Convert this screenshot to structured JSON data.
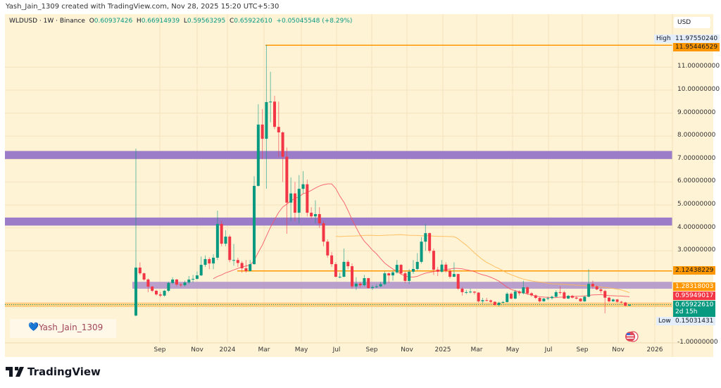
{
  "header": {
    "credit": "Yash_Jain_1309 created with TradingView.com, Nov 28, 2025 15:20 UTC+5:30"
  },
  "legend": {
    "symbol": "WLDUSD · 1W · Binance",
    "o_label": "O",
    "o": "0.60937426",
    "h_label": "H",
    "h": "0.66914939",
    "l_label": "L",
    "l": "0.59563295",
    "c_label": "C",
    "c": "0.65922610",
    "change": "+0.05045548 (+8.29%)"
  },
  "price_axis": {
    "currency": "USD",
    "ticks": [
      "11.00000000",
      "10.00000000",
      "9.00000000",
      "8.00000000",
      "7.00000000",
      "6.00000000",
      "5.00000000",
      "4.00000000",
      "3.00000000",
      "-1.00000000"
    ],
    "tick_values": [
      11,
      10,
      9,
      8,
      7,
      6,
      5,
      4,
      3,
      -1
    ]
  },
  "price_labels": {
    "high_tag": "High",
    "high": "11.97550240",
    "hline_top": "11.95446529",
    "hline_mid": "2.12438229",
    "ma_orange": "1.28318003",
    "ma_red": "0.95949017",
    "last": "0.65922610",
    "countdown": "2d 15h",
    "low_tag": "Low",
    "low": "0.15031431"
  },
  "time_axis": [
    "Sep",
    "Nov",
    "2024",
    "Mar",
    "May",
    "Jul",
    "Sep",
    "Nov",
    "2025",
    "Mar",
    "May",
    "Jul",
    "Sep",
    "Nov",
    "2026"
  ],
  "watermark": {
    "emoji": "💙",
    "name": "Yash_Jain_1309"
  },
  "footer": {
    "brand": "TradingView"
  },
  "colors": {
    "up": "#089981",
    "down": "#f23645",
    "zone": "#9b7cc8",
    "hline": "#ff9800",
    "ma_red": "#f7525f",
    "ma_orange": "#ffb74d",
    "background": "#fff3d6"
  },
  "chart_data": {
    "type": "candlestick",
    "symbol": "WLDUSD",
    "interval": "1W",
    "exchange": "Binance",
    "ylim": [
      -1,
      12.5
    ],
    "horizontal_lines": [
      11.95446529,
      2.12438229
    ],
    "zones": [
      [
        7.0,
        7.35
      ],
      [
        4.1,
        4.45
      ],
      [
        1.35,
        1.65
      ],
      [
        0.55,
        0.75
      ]
    ],
    "open": [
      0.18,
      2.27,
      2.02,
      1.75,
      1.44,
      1.26,
      1.1,
      1.05,
      1.26,
      1.6,
      1.75,
      1.53,
      1.5,
      1.62,
      1.75,
      1.78,
      1.93,
      2.39,
      2.64,
      2.45,
      2.7,
      4.17,
      3.31,
      3.62,
      2.6,
      2.6,
      2.47,
      2.24,
      2.12,
      2.42,
      5.83,
      8.5,
      7.88,
      9.48,
      9.5,
      8.4,
      8.16,
      7.1,
      5.1,
      5.5,
      4.66,
      5.7,
      5.9,
      4.66,
      4.5,
      4.6,
      4.2,
      3.4,
      2.8,
      2.42,
      1.87,
      1.87,
      2.52,
      2.33,
      1.45,
      1.57,
      1.5,
      1.81,
      1.38,
      1.42,
      1.45,
      1.55,
      2.02,
      1.93,
      2.06,
      2.39,
      2.02,
      1.69,
      2.09,
      2.21,
      2.52,
      3.4,
      3.77,
      3.0,
      2.18,
      2.09,
      2.4,
      2.12,
      1.87,
      1.99,
      1.35,
      1.2,
      1.2,
      1.22,
      1.18,
      0.8,
      0.85,
      0.84,
      0.78,
      0.64,
      0.74,
      0.77,
      1.13,
      0.92,
      1.23,
      1.15,
      1.41,
      1.15,
      1.06,
      0.95,
      0.8,
      0.92,
      0.94,
      1.0,
      1.2,
      1.19,
      0.92,
      1.04,
      0.96,
      0.92,
      0.8,
      1.0,
      1.56,
      1.45,
      1.32,
      1.25,
      0.96,
      0.8,
      0.88,
      0.78,
      0.75,
      0.60937426
    ],
    "high": [
      7.45,
      2.5,
      2.05,
      1.8,
      1.48,
      1.3,
      1.2,
      1.3,
      1.65,
      1.85,
      1.78,
      1.6,
      1.7,
      1.9,
      1.95,
      2.1,
      2.75,
      2.8,
      2.72,
      2.85,
      4.75,
      4.3,
      3.9,
      3.7,
      3.3,
      2.7,
      2.55,
      2.6,
      2.6,
      6.25,
      9.39,
      9.17,
      11.9755024,
      10.8,
      9.75,
      9.5,
      8.2,
      7.5,
      6.2,
      6.0,
      6.3,
      6.47,
      6.1,
      4.9,
      5.2,
      4.9,
      4.3,
      3.5,
      2.95,
      2.5,
      2.05,
      3.1,
      2.6,
      2.45,
      1.85,
      1.65,
      1.95,
      1.82,
      1.5,
      1.55,
      1.65,
      2.1,
      2.05,
      2.15,
      2.6,
      2.42,
      2.1,
      2.2,
      2.6,
      2.9,
      3.6,
      4.17,
      3.8,
      3.1,
      2.3,
      2.6,
      2.5,
      2.2,
      2.5,
      2.0,
      1.42,
      1.3,
      1.35,
      1.25,
      1.2,
      0.95,
      0.95,
      0.88,
      0.8,
      0.78,
      0.82,
      1.2,
      1.2,
      1.3,
      1.28,
      1.7,
      1.45,
      1.2,
      1.1,
      0.98,
      0.95,
      1.0,
      1.05,
      1.28,
      1.45,
      1.25,
      1.08,
      1.08,
      1.0,
      0.95,
      1.05,
      2.2,
      1.7,
      1.5,
      1.38,
      1.3,
      1.0,
      0.92,
      0.9,
      0.82,
      0.78,
      0.66914939
    ],
    "low": [
      0.15031431,
      1.95,
      1.7,
      1.2,
      1.2,
      1.05,
      0.98,
      1.0,
      1.2,
      1.55,
      1.45,
      1.42,
      1.45,
      1.55,
      1.62,
      1.75,
      1.9,
      2.3,
      2.2,
      2.2,
      2.6,
      3.2,
      3.2,
      2.5,
      2.35,
      2.3,
      2.05,
      2.05,
      2.1,
      2.4,
      5.8,
      7.0,
      5.7,
      8.6,
      8.3,
      7.1,
      6.0,
      3.74,
      4.3,
      4.3,
      4.2,
      5.5,
      4.5,
      4.4,
      4.2,
      4.0,
      3.2,
      2.7,
      2.3,
      1.85,
      1.8,
      1.85,
      2.2,
      1.35,
      1.3,
      1.4,
      1.45,
      1.35,
      1.3,
      1.38,
      1.42,
      1.5,
      1.6,
      1.7,
      2.0,
      1.95,
      1.6,
      1.55,
      2.0,
      2.15,
      2.45,
      3.0,
      2.9,
      1.95,
      1.9,
      2.05,
      2.05,
      1.8,
      1.85,
      1.3,
      1.05,
      1.12,
      1.15,
      1.1,
      0.75,
      0.7,
      0.8,
      0.72,
      0.62,
      0.58,
      0.7,
      0.75,
      0.88,
      0.88,
      1.05,
      1.1,
      1.08,
      1.0,
      0.9,
      0.75,
      0.78,
      0.85,
      0.88,
      0.98,
      1.1,
      0.9,
      0.9,
      0.92,
      0.88,
      0.78,
      0.78,
      0.98,
      1.35,
      1.28,
      1.15,
      0.28,
      0.75,
      0.78,
      0.74,
      0.7,
      0.58,
      0.59563295
    ],
    "close": [
      2.27,
      2.02,
      1.75,
      1.44,
      1.26,
      1.1,
      1.05,
      1.26,
      1.6,
      1.75,
      1.53,
      1.5,
      1.62,
      1.75,
      1.78,
      1.93,
      2.39,
      2.64,
      2.45,
      2.7,
      4.17,
      3.31,
      3.62,
      2.6,
      2.6,
      2.47,
      2.24,
      2.12,
      2.42,
      5.83,
      8.5,
      7.88,
      9.48,
      9.5,
      8.4,
      8.16,
      7.1,
      5.1,
      5.5,
      4.66,
      5.7,
      5.9,
      4.66,
      4.5,
      4.6,
      4.2,
      3.4,
      2.8,
      2.42,
      1.87,
      1.87,
      2.52,
      2.33,
      1.45,
      1.57,
      1.5,
      1.81,
      1.38,
      1.42,
      1.45,
      1.55,
      2.02,
      1.93,
      2.06,
      2.39,
      2.02,
      1.69,
      2.09,
      2.21,
      2.52,
      3.4,
      3.77,
      3.0,
      2.18,
      2.09,
      2.4,
      2.12,
      1.87,
      1.99,
      1.35,
      1.2,
      1.2,
      1.22,
      1.18,
      0.8,
      0.85,
      0.84,
      0.78,
      0.64,
      0.74,
      0.77,
      1.13,
      0.92,
      1.23,
      1.15,
      1.41,
      1.15,
      1.06,
      0.95,
      0.8,
      0.92,
      0.94,
      1.0,
      1.2,
      1.19,
      0.92,
      1.04,
      0.96,
      0.92,
      0.8,
      1.0,
      1.56,
      1.45,
      1.32,
      1.25,
      0.96,
      0.8,
      0.88,
      0.78,
      0.75,
      0.60937426,
      0.6592261
    ]
  }
}
